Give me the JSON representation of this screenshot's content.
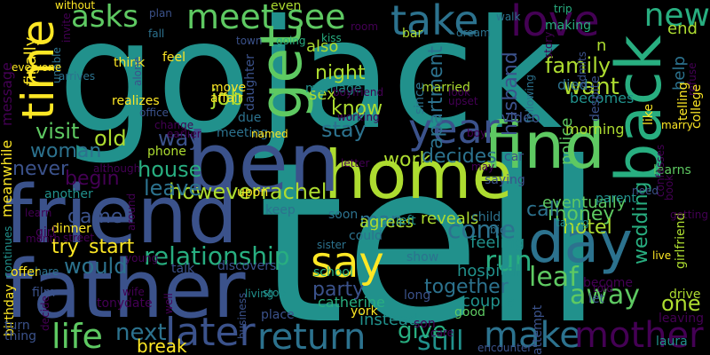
{
  "palette": {
    "background": "#000000",
    "c1": "#440154",
    "c2": "#3b528b",
    "c3": "#2c728e",
    "c4": "#21918c",
    "c5": "#28ae80",
    "c6": "#5ec962",
    "c7": "#addc30",
    "c8": "#fde725"
  },
  "words": [
    {
      "text": "tell",
      "color": "#21918c"
    },
    {
      "text": "jack",
      "color": "#21918c"
    },
    {
      "text": "go",
      "color": "#21918c"
    },
    {
      "text": "home",
      "color": "#addc30"
    },
    {
      "text": "friend",
      "color": "#3b528b"
    },
    {
      "text": "father",
      "color": "#3b528b"
    },
    {
      "text": "ben",
      "color": "#3b528b"
    },
    {
      "text": "back",
      "color": "#28ae80"
    },
    {
      "text": "find",
      "color": "#5ec962"
    },
    {
      "text": "get",
      "color": "#5ec962"
    },
    {
      "text": "time",
      "color": "#fde725"
    },
    {
      "text": "day",
      "color": "#2c728e"
    },
    {
      "text": "love",
      "color": "#440154"
    },
    {
      "text": "take",
      "color": "#2c728e"
    },
    {
      "text": "meet",
      "color": "#5ec962"
    },
    {
      "text": "see",
      "color": "#5ec962"
    },
    {
      "text": "asks",
      "color": "#5ec962"
    },
    {
      "text": "new",
      "color": "#28ae80"
    },
    {
      "text": "year",
      "color": "#3b528b"
    },
    {
      "text": "say",
      "color": "#fde725"
    },
    {
      "text": "return",
      "color": "#2c728e"
    },
    {
      "text": "later",
      "color": "#3b528b"
    },
    {
      "text": "make",
      "color": "#2c728e"
    },
    {
      "text": "mother",
      "color": "#440154"
    },
    {
      "text": "life",
      "color": "#5ec962"
    },
    {
      "text": "still",
      "color": "#21918c"
    },
    {
      "text": "give",
      "color": "#28ae80"
    },
    {
      "text": "next",
      "color": "#2c728e"
    },
    {
      "text": "break",
      "color": "#fde725"
    },
    {
      "text": "party",
      "color": "#3b528b"
    },
    {
      "text": "run",
      "color": "#28ae80"
    },
    {
      "text": "leaf",
      "color": "#5ec962"
    },
    {
      "text": "away",
      "color": "#5ec962"
    },
    {
      "text": "one",
      "color": "#addc30"
    },
    {
      "text": "together",
      "color": "#2c728e"
    },
    {
      "text": "come",
      "color": "#2c728e"
    },
    {
      "text": "would",
      "color": "#2c728e"
    },
    {
      "text": "relationship",
      "color": "#28ae80"
    },
    {
      "text": "try",
      "color": "#fde725"
    },
    {
      "text": "start",
      "color": "#fde725"
    },
    {
      "text": "game",
      "color": "#3b528b"
    },
    {
      "text": "money",
      "color": "#5ec962"
    },
    {
      "text": "hotel",
      "color": "#addc30"
    },
    {
      "text": "wedding",
      "color": "#28ae80"
    },
    {
      "text": "call",
      "color": "#2c728e"
    },
    {
      "text": "rachel",
      "color": "#addc30"
    },
    {
      "text": "however",
      "color": "#addc30"
    },
    {
      "text": "leave",
      "color": "#2c728e"
    },
    {
      "text": "house",
      "color": "#28ae80"
    },
    {
      "text": "way",
      "color": "#3b528b"
    },
    {
      "text": "woman",
      "color": "#2c728e"
    },
    {
      "text": "never",
      "color": "#3b528b"
    },
    {
      "text": "begin",
      "color": "#440154"
    },
    {
      "text": "visit",
      "color": "#5ec962"
    },
    {
      "text": "old",
      "color": "#addc30"
    },
    {
      "text": "stay",
      "color": "#2c728e"
    },
    {
      "text": "know",
      "color": "#addc30"
    },
    {
      "text": "night",
      "color": "#addc30"
    },
    {
      "text": "sex",
      "color": "#addc30"
    },
    {
      "text": "also",
      "color": "#addc30"
    },
    {
      "text": "work",
      "color": "#addc30"
    },
    {
      "text": "decides",
      "color": "#2c728e"
    },
    {
      "text": "family",
      "color": "#addc30"
    },
    {
      "text": "want",
      "color": "#addc30"
    },
    {
      "text": "husband",
      "color": "#3b528b"
    },
    {
      "text": "apartment",
      "color": "#2c728e"
    },
    {
      "text": "help",
      "color": "#2c728e"
    },
    {
      "text": "end",
      "color": "#addc30"
    },
    {
      "text": "n",
      "color": "#addc30"
    },
    {
      "text": "job",
      "color": "#addc30"
    },
    {
      "text": "man",
      "color": "#2c728e"
    },
    {
      "text": "agrees",
      "color": "#addc30"
    },
    {
      "text": "reveals",
      "color": "#addc30"
    },
    {
      "text": "finally",
      "color": "#fde725"
    },
    {
      "text": "message",
      "color": "#440154"
    },
    {
      "text": "meanwhile",
      "color": "#fde725"
    },
    {
      "text": "hospital",
      "color": "#21918c"
    },
    {
      "text": "feeling",
      "color": "#21918c"
    },
    {
      "text": "couple",
      "color": "#21918c"
    },
    {
      "text": "instead",
      "color": "#21918c"
    },
    {
      "text": "catherine",
      "color": "#28ae80"
    },
    {
      "text": "school",
      "color": "#28ae80"
    },
    {
      "text": "eventually",
      "color": "#5ec962"
    },
    {
      "text": "police",
      "color": "#5ec962"
    },
    {
      "text": "morning",
      "color": "#addc30"
    },
    {
      "text": "video",
      "color": "#3b528b"
    },
    {
      "text": "died",
      "color": "#2c728e"
    },
    {
      "text": "becomes",
      "color": "#21918c"
    },
    {
      "text": "married",
      "color": "#addc30"
    },
    {
      "text": "telling",
      "color": "#fde725"
    },
    {
      "text": "college",
      "color": "#fde725"
    },
    {
      "text": "learns",
      "color": "#5ec962"
    },
    {
      "text": "girlfriend",
      "color": "#addc30"
    },
    {
      "text": "leaving",
      "color": "#440154"
    },
    {
      "text": "drive",
      "color": "#addc30"
    },
    {
      "text": "laura",
      "color": "#21918c"
    },
    {
      "text": "let",
      "color": "#3b528b"
    },
    {
      "text": "good",
      "color": "#5ec962"
    },
    {
      "text": "son",
      "color": "#440154"
    },
    {
      "text": "york",
      "color": "#fde725"
    },
    {
      "text": "tony",
      "color": "#440154"
    },
    {
      "text": "date",
      "color": "#440154"
    },
    {
      "text": "film",
      "color": "#3b528b"
    },
    {
      "text": "dinner",
      "color": "#fde725"
    },
    {
      "text": "girl",
      "color": "#440154"
    },
    {
      "text": "another",
      "color": "#21918c"
    },
    {
      "text": "phone",
      "color": "#addc30"
    },
    {
      "text": "meeting",
      "color": "#2c728e"
    },
    {
      "text": "realizes",
      "color": "#fde725"
    },
    {
      "text": "feel",
      "color": "#fde725"
    },
    {
      "text": "think",
      "color": "#fde725"
    },
    {
      "text": "move",
      "color": "#fde725"
    },
    {
      "text": "affair",
      "color": "#fde725"
    },
    {
      "text": "marriage",
      "color": "#21918c"
    },
    {
      "text": "kiss",
      "color": "#28ae80"
    },
    {
      "text": "going",
      "color": "#28ae80"
    },
    {
      "text": "town",
      "color": "#3b528b"
    },
    {
      "text": "room",
      "color": "#440154"
    },
    {
      "text": "bar",
      "color": "#addc30"
    },
    {
      "text": "dream",
      "color": "#2c728e"
    },
    {
      "text": "walk",
      "color": "#2c728e"
    },
    {
      "text": "making",
      "color": "#28ae80"
    },
    {
      "text": "trip",
      "color": "#28ae80"
    },
    {
      "text": "refuse",
      "color": "#440154"
    },
    {
      "text": "despite",
      "color": "#3b528b"
    },
    {
      "text": "admits",
      "color": "#3b528b"
    },
    {
      "text": "story",
      "color": "#440154"
    },
    {
      "text": "following",
      "color": "#2c728e"
    },
    {
      "text": "since",
      "color": "#2c728e"
    },
    {
      "text": "look",
      "color": "#440154"
    },
    {
      "text": "upset",
      "color": "#440154"
    },
    {
      "text": "boyfriend",
      "color": "#440154"
    },
    {
      "text": "working",
      "color": "#440154"
    },
    {
      "text": "named",
      "color": "#fde725"
    },
    {
      "text": "due",
      "color": "#2c728e"
    },
    {
      "text": "daughter",
      "color": "#3b528b"
    },
    {
      "text": "office",
      "color": "#3b528b"
    },
    {
      "text": "change",
      "color": "#440154"
    },
    {
      "text": "earlier",
      "color": "#440154"
    },
    {
      "text": "although",
      "color": "#440154"
    },
    {
      "text": "upon",
      "color": "#fde725"
    },
    {
      "text": "keep",
      "color": "#2c728e"
    },
    {
      "text": "soon",
      "color": "#2c728e"
    },
    {
      "text": "could",
      "color": "#2c728e"
    },
    {
      "text": "sister",
      "color": "#2c728e"
    },
    {
      "text": "show",
      "color": "#2c728e"
    },
    {
      "text": "talk",
      "color": "#3b528b"
    },
    {
      "text": "discovers",
      "color": "#3b528b"
    },
    {
      "text": "stop",
      "color": "#21918c"
    },
    {
      "text": "living",
      "color": "#21918c"
    },
    {
      "text": "business",
      "color": "#3b528b"
    },
    {
      "text": "place",
      "color": "#3b528b"
    },
    {
      "text": "wife",
      "color": "#440154"
    },
    {
      "text": "well",
      "color": "#440154"
    },
    {
      "text": "young",
      "color": "#440154"
    },
    {
      "text": "around",
      "color": "#440154"
    },
    {
      "text": "street",
      "color": "#440154"
    },
    {
      "text": "month",
      "color": "#440154"
    },
    {
      "text": "learn",
      "color": "#440154"
    },
    {
      "text": "share",
      "color": "#2c728e"
    },
    {
      "text": "offer",
      "color": "#fde725"
    },
    {
      "text": "birthday",
      "color": "#fde725"
    },
    {
      "text": "continues",
      "color": "#21918c"
    },
    {
      "text": "turn",
      "color": "#3b528b"
    },
    {
      "text": "thing",
      "color": "#3b528b"
    },
    {
      "text": "decide",
      "color": "#440154"
    },
    {
      "text": "without",
      "color": "#fde725"
    },
    {
      "text": "invite",
      "color": "#440154"
    },
    {
      "text": "unable",
      "color": "#2c728e"
    },
    {
      "text": "everyone",
      "color": "#fde725"
    },
    {
      "text": "arrives",
      "color": "#2c728e"
    },
    {
      "text": "alone",
      "color": "#3b528b"
    },
    {
      "text": "plan",
      "color": "#3b528b"
    },
    {
      "text": "fall",
      "color": "#2c728e"
    },
    {
      "text": "even",
      "color": "#addc30"
    },
    {
      "text": "car",
      "color": "#3b528b"
    },
    {
      "text": "saying",
      "color": "#3b528b"
    },
    {
      "text": "may",
      "color": "#440154"
    },
    {
      "text": "boy",
      "color": "#440154"
    },
    {
      "text": "letter",
      "color": "#440154"
    },
    {
      "text": "child",
      "color": "#2c728e"
    },
    {
      "text": "big",
      "color": "#2c728e"
    },
    {
      "text": "left",
      "color": "#21918c"
    },
    {
      "text": "parent",
      "color": "#21918c"
    },
    {
      "text": "taking",
      "color": "#21918c"
    },
    {
      "text": "need",
      "color": "#3b528b"
    },
    {
      "text": "book",
      "color": "#440154"
    },
    {
      "text": "getting",
      "color": "#440154"
    },
    {
      "text": "like",
      "color": "#fde725"
    },
    {
      "text": "confesses",
      "color": "#440154"
    },
    {
      "text": "marry",
      "color": "#fde725"
    },
    {
      "text": "live",
      "color": "#fde725"
    },
    {
      "text": "told",
      "color": "#440154"
    },
    {
      "text": "become",
      "color": "#440154"
    },
    {
      "text": "long",
      "color": "#3b528b"
    },
    {
      "text": "attempt",
      "color": "#3b528b"
    },
    {
      "text": "care",
      "color": "#440154"
    },
    {
      "text": "encounter",
      "color": "#3b528b"
    }
  ]
}
